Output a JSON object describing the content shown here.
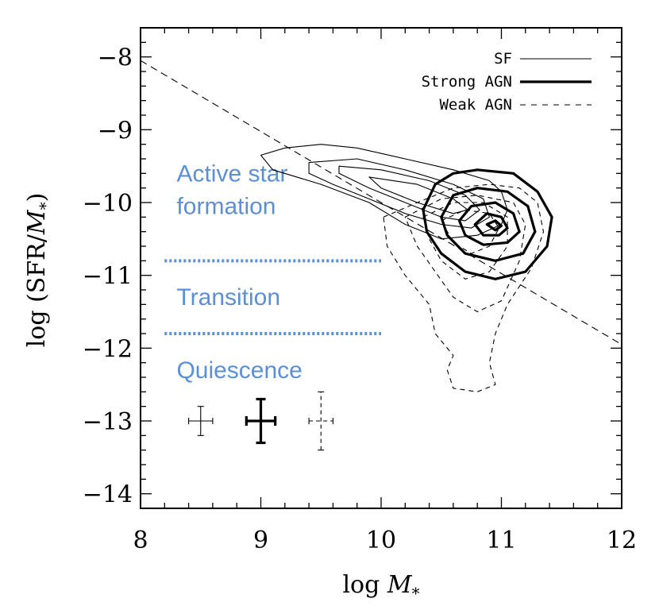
{
  "colors": {
    "region": "#5b8fd6",
    "axis": "#000000"
  },
  "chart_data": {
    "type": "contour",
    "xlabel_prefix": "log ",
    "xlabel_var": "M",
    "xlabel_sub": "*",
    "ylabel_prefix": "log (SFR/",
    "ylabel_var": "M",
    "ylabel_sub": "*",
    "ylabel_suffix": ")",
    "xlim": [
      8,
      12
    ],
    "ylim": [
      -14.2,
      -7.6
    ],
    "xticks": [
      8,
      9,
      10,
      11,
      12
    ],
    "xtick_labels": [
      "8",
      "9",
      "10",
      "11",
      "12"
    ],
    "yticks": [
      -8,
      -9,
      -10,
      -11,
      -12,
      -13,
      -14
    ],
    "ytick_labels": [
      "−8",
      "−9",
      "−10",
      "−11",
      "−12",
      "−13",
      "−14"
    ],
    "legend": [
      {
        "label": "SF",
        "style": "thin"
      },
      {
        "label": "Strong AGN",
        "style": "thick"
      },
      {
        "label": "Weak AGN",
        "style": "dashed"
      }
    ],
    "diagonal_line": {
      "x": [
        8,
        12
      ],
      "y": [
        -8.05,
        -11.95
      ]
    },
    "regions": [
      {
        "label_lines": [
          "Active star",
          "formation"
        ],
        "x": 8.3,
        "y": [
          -9.6,
          -10.05
        ]
      },
      {
        "label_lines": [
          "Transition"
        ],
        "x": 8.3,
        "y": [
          -11.3
        ]
      },
      {
        "label_lines": [
          "Quiescence"
        ],
        "x": 8.3,
        "y": [
          -12.3
        ]
      }
    ],
    "region_boundaries": [
      {
        "y": -10.8,
        "x": [
          8.2,
          10.0
        ]
      },
      {
        "y": -11.8,
        "x": [
          8.2,
          10.0
        ]
      }
    ],
    "error_bars": [
      {
        "series": "SF",
        "x": 8.5,
        "y": -13.0,
        "xerr": 0.1,
        "yerr": 0.2
      },
      {
        "series": "Strong AGN",
        "x": 9.0,
        "y": -13.0,
        "xerr": 0.12,
        "yerr": 0.3
      },
      {
        "series": "Weak AGN",
        "x": 9.5,
        "y": -13.0,
        "xerr": 0.1,
        "yerr": 0.4
      }
    ],
    "series": [
      {
        "name": "SF",
        "style": "thin",
        "contours": [
          [
            [
              9.0,
              -9.35
            ],
            [
              9.2,
              -9.25
            ],
            [
              9.5,
              -9.2
            ],
            [
              9.8,
              -9.25
            ],
            [
              10.2,
              -9.4
            ],
            [
              10.6,
              -9.55
            ],
            [
              10.9,
              -9.7
            ],
            [
              11.0,
              -9.85
            ],
            [
              11.05,
              -10.1
            ],
            [
              11.0,
              -10.3
            ],
            [
              10.8,
              -10.45
            ],
            [
              10.5,
              -10.5
            ],
            [
              10.2,
              -10.3
            ],
            [
              9.9,
              -10.0
            ],
            [
              9.5,
              -9.75
            ],
            [
              9.1,
              -9.55
            ],
            [
              9.0,
              -9.35
            ]
          ],
          [
            [
              9.4,
              -9.45
            ],
            [
              9.8,
              -9.4
            ],
            [
              10.2,
              -9.55
            ],
            [
              10.6,
              -9.75
            ],
            [
              10.85,
              -9.95
            ],
            [
              10.9,
              -10.2
            ],
            [
              10.75,
              -10.35
            ],
            [
              10.5,
              -10.3
            ],
            [
              10.2,
              -10.15
            ],
            [
              9.9,
              -9.95
            ],
            [
              9.6,
              -9.75
            ],
            [
              9.4,
              -9.6
            ],
            [
              9.4,
              -9.45
            ]
          ],
          [
            [
              9.65,
              -9.5
            ],
            [
              10.0,
              -9.55
            ],
            [
              10.4,
              -9.7
            ],
            [
              10.7,
              -9.9
            ],
            [
              10.82,
              -10.1
            ],
            [
              10.7,
              -10.25
            ],
            [
              10.5,
              -10.2
            ],
            [
              10.2,
              -10.0
            ],
            [
              9.9,
              -9.8
            ],
            [
              9.65,
              -9.6
            ],
            [
              9.65,
              -9.5
            ]
          ],
          [
            [
              9.9,
              -9.65
            ],
            [
              10.3,
              -9.75
            ],
            [
              10.6,
              -9.95
            ],
            [
              10.72,
              -10.1
            ],
            [
              10.6,
              -10.15
            ],
            [
              10.3,
              -10.0
            ],
            [
              10.0,
              -9.8
            ],
            [
              9.9,
              -9.65
            ]
          ]
        ]
      },
      {
        "name": "Strong AGN",
        "style": "thick",
        "contours": [
          [
            [
              10.35,
              -10.1
            ],
            [
              10.45,
              -9.75
            ],
            [
              10.6,
              -9.6
            ],
            [
              10.8,
              -9.55
            ],
            [
              11.1,
              -9.6
            ],
            [
              11.3,
              -9.85
            ],
            [
              11.42,
              -10.2
            ],
            [
              11.38,
              -10.6
            ],
            [
              11.2,
              -10.95
            ],
            [
              10.95,
              -11.05
            ],
            [
              10.7,
              -10.95
            ],
            [
              10.5,
              -10.7
            ],
            [
              10.38,
              -10.4
            ],
            [
              10.35,
              -10.1
            ]
          ],
          [
            [
              10.5,
              -10.2
            ],
            [
              10.6,
              -9.9
            ],
            [
              10.8,
              -9.8
            ],
            [
              11.05,
              -9.85
            ],
            [
              11.22,
              -10.05
            ],
            [
              11.28,
              -10.4
            ],
            [
              11.18,
              -10.7
            ],
            [
              10.95,
              -10.8
            ],
            [
              10.7,
              -10.7
            ],
            [
              10.55,
              -10.45
            ],
            [
              10.5,
              -10.2
            ]
          ],
          [
            [
              10.65,
              -10.25
            ],
            [
              10.75,
              -10.05
            ],
            [
              10.95,
              -10.0
            ],
            [
              11.1,
              -10.15
            ],
            [
              11.15,
              -10.4
            ],
            [
              11.05,
              -10.55
            ],
            [
              10.85,
              -10.58
            ],
            [
              10.7,
              -10.45
            ],
            [
              10.65,
              -10.25
            ]
          ],
          [
            [
              10.78,
              -10.3
            ],
            [
              10.88,
              -10.15
            ],
            [
              11.0,
              -10.2
            ],
            [
              11.05,
              -10.35
            ],
            [
              10.98,
              -10.45
            ],
            [
              10.85,
              -10.45
            ],
            [
              10.78,
              -10.3
            ]
          ],
          [
            [
              10.88,
              -10.3
            ],
            [
              10.95,
              -10.25
            ],
            [
              11.0,
              -10.32
            ],
            [
              10.95,
              -10.38
            ],
            [
              10.88,
              -10.3
            ]
          ]
        ]
      },
      {
        "name": "Weak AGN",
        "style": "dashed",
        "contours": [
          [
            [
              10.02,
              -10.2
            ],
            [
              10.3,
              -10.0
            ],
            [
              10.6,
              -9.8
            ],
            [
              10.9,
              -9.75
            ],
            [
              11.15,
              -9.8
            ],
            [
              11.3,
              -10.0
            ],
            [
              11.35,
              -10.4
            ],
            [
              11.25,
              -10.9
            ],
            [
              11.05,
              -11.4
            ],
            [
              10.95,
              -11.8
            ],
            [
              10.9,
              -12.2
            ],
            [
              10.95,
              -12.5
            ],
            [
              10.8,
              -12.6
            ],
            [
              10.6,
              -12.55
            ],
            [
              10.55,
              -12.3
            ],
            [
              10.6,
              -12.1
            ],
            [
              10.45,
              -11.8
            ],
            [
              10.4,
              -11.4
            ],
            [
              10.2,
              -11.0
            ],
            [
              10.05,
              -10.6
            ],
            [
              10.02,
              -10.2
            ]
          ],
          [
            [
              10.2,
              -10.2
            ],
            [
              10.5,
              -9.95
            ],
            [
              10.8,
              -9.9
            ],
            [
              11.1,
              -10.0
            ],
            [
              11.2,
              -10.3
            ],
            [
              11.15,
              -10.8
            ],
            [
              11.0,
              -11.35
            ],
            [
              10.8,
              -11.5
            ],
            [
              10.6,
              -11.3
            ],
            [
              10.45,
              -10.95
            ],
            [
              10.3,
              -10.6
            ],
            [
              10.2,
              -10.2
            ]
          ],
          [
            [
              10.35,
              -10.2
            ],
            [
              10.6,
              -10.0
            ],
            [
              10.85,
              -10.0
            ],
            [
              11.05,
              -10.2
            ],
            [
              11.05,
              -10.6
            ],
            [
              10.9,
              -10.95
            ],
            [
              10.7,
              -11.05
            ],
            [
              10.5,
              -10.8
            ],
            [
              10.4,
              -10.5
            ],
            [
              10.35,
              -10.2
            ]
          ],
          [
            [
              10.5,
              -10.25
            ],
            [
              10.7,
              -10.1
            ],
            [
              10.9,
              -10.15
            ],
            [
              10.98,
              -10.35
            ],
            [
              10.9,
              -10.6
            ],
            [
              10.75,
              -10.7
            ],
            [
              10.6,
              -10.55
            ],
            [
              10.5,
              -10.25
            ]
          ]
        ]
      }
    ]
  }
}
